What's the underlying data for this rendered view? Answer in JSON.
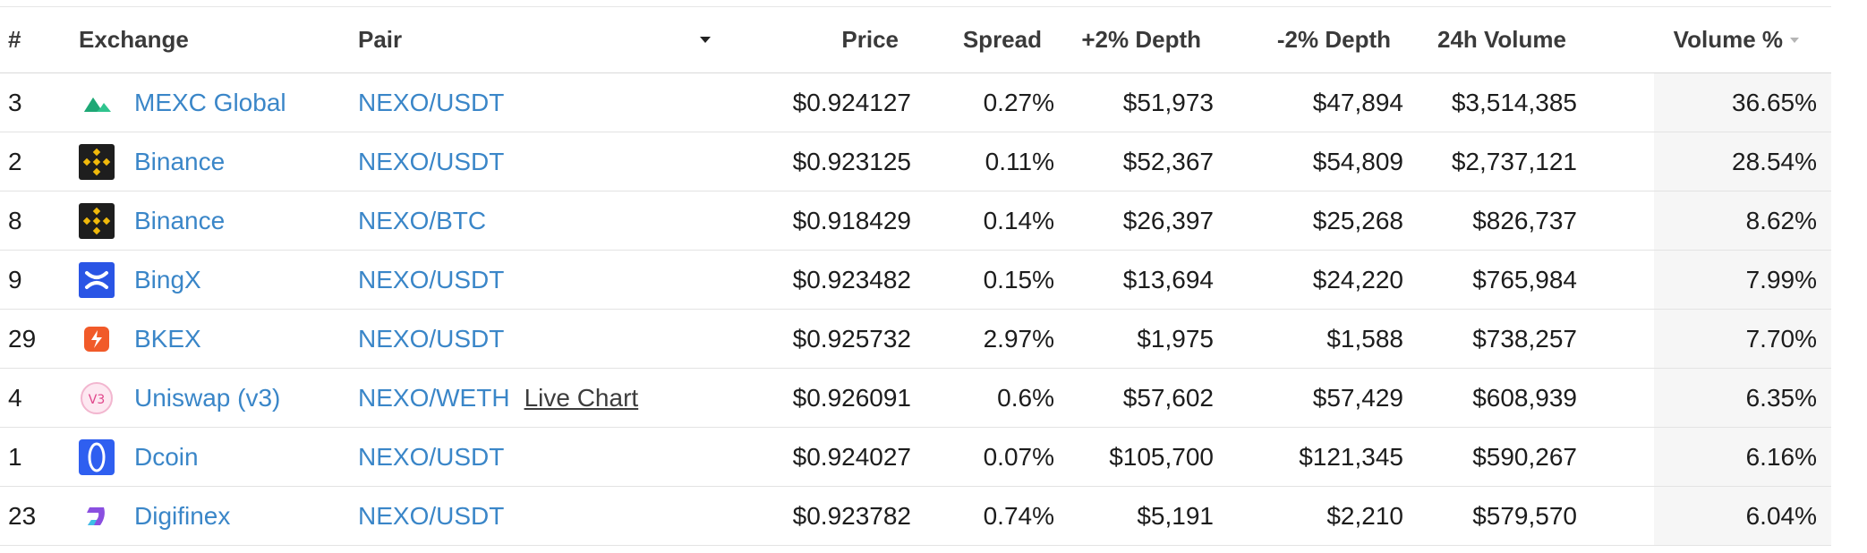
{
  "header": {
    "rank": "#",
    "exchange": "Exchange",
    "pair": "Pair",
    "price": "Price",
    "spread": "Spread",
    "depth_plus": "+2% Depth",
    "depth_minus": "-2% Depth",
    "volume": "24h Volume",
    "volume_pct": "Volume %"
  },
  "rows": [
    {
      "rank": "3",
      "exchange": "MEXC Global",
      "icon": "mexc-logo-icon",
      "pair": "NEXO/USDT",
      "extra": "",
      "price": "$0.924127",
      "spread": "0.27%",
      "depth_plus": "$51,973",
      "depth_minus": "$47,894",
      "volume": "$3,514,385",
      "volume_pct": "36.65%"
    },
    {
      "rank": "2",
      "exchange": "Binance",
      "icon": "binance-logo-icon",
      "pair": "NEXO/USDT",
      "extra": "",
      "price": "$0.923125",
      "spread": "0.11%",
      "depth_plus": "$52,367",
      "depth_minus": "$54,809",
      "volume": "$2,737,121",
      "volume_pct": "28.54%"
    },
    {
      "rank": "8",
      "exchange": "Binance",
      "icon": "binance-logo-icon",
      "pair": "NEXO/BTC",
      "extra": "",
      "price": "$0.918429",
      "spread": "0.14%",
      "depth_plus": "$26,397",
      "depth_minus": "$25,268",
      "volume": "$826,737",
      "volume_pct": "8.62%"
    },
    {
      "rank": "9",
      "exchange": "BingX",
      "icon": "bingx-logo-icon",
      "pair": "NEXO/USDT",
      "extra": "",
      "price": "$0.923482",
      "spread": "0.15%",
      "depth_plus": "$13,694",
      "depth_minus": "$24,220",
      "volume": "$765,984",
      "volume_pct": "7.99%"
    },
    {
      "rank": "29",
      "exchange": "BKEX",
      "icon": "bkex-logo-icon",
      "pair": "NEXO/USDT",
      "extra": "",
      "price": "$0.925732",
      "spread": "2.97%",
      "depth_plus": "$1,975",
      "depth_minus": "$1,588",
      "volume": "$738,257",
      "volume_pct": "7.70%"
    },
    {
      "rank": "4",
      "exchange": "Uniswap (v3)",
      "icon": "uniswap-logo-icon",
      "pair": "NEXO/WETH",
      "extra": "Live Chart",
      "price": "$0.926091",
      "spread": "0.6%",
      "depth_plus": "$57,602",
      "depth_minus": "$57,429",
      "volume": "$608,939",
      "volume_pct": "6.35%"
    },
    {
      "rank": "1",
      "exchange": "Dcoin",
      "icon": "dcoin-logo-icon",
      "pair": "NEXO/USDT",
      "extra": "",
      "price": "$0.924027",
      "spread": "0.07%",
      "depth_plus": "$105,700",
      "depth_minus": "$121,345",
      "volume": "$590,267",
      "volume_pct": "6.16%"
    },
    {
      "rank": "23",
      "exchange": "Digifinex",
      "icon": "digifinex-logo-icon",
      "pair": "NEXO/USDT",
      "extra": "",
      "price": "$0.923782",
      "spread": "0.74%",
      "depth_plus": "$5,191",
      "depth_minus": "$2,210",
      "volume": "$579,570",
      "volume_pct": "6.04%"
    }
  ],
  "colors": {
    "link": "#3a86c8",
    "row_border": "#e3e3e3",
    "volume_column_bg": "#f6f6f6"
  }
}
